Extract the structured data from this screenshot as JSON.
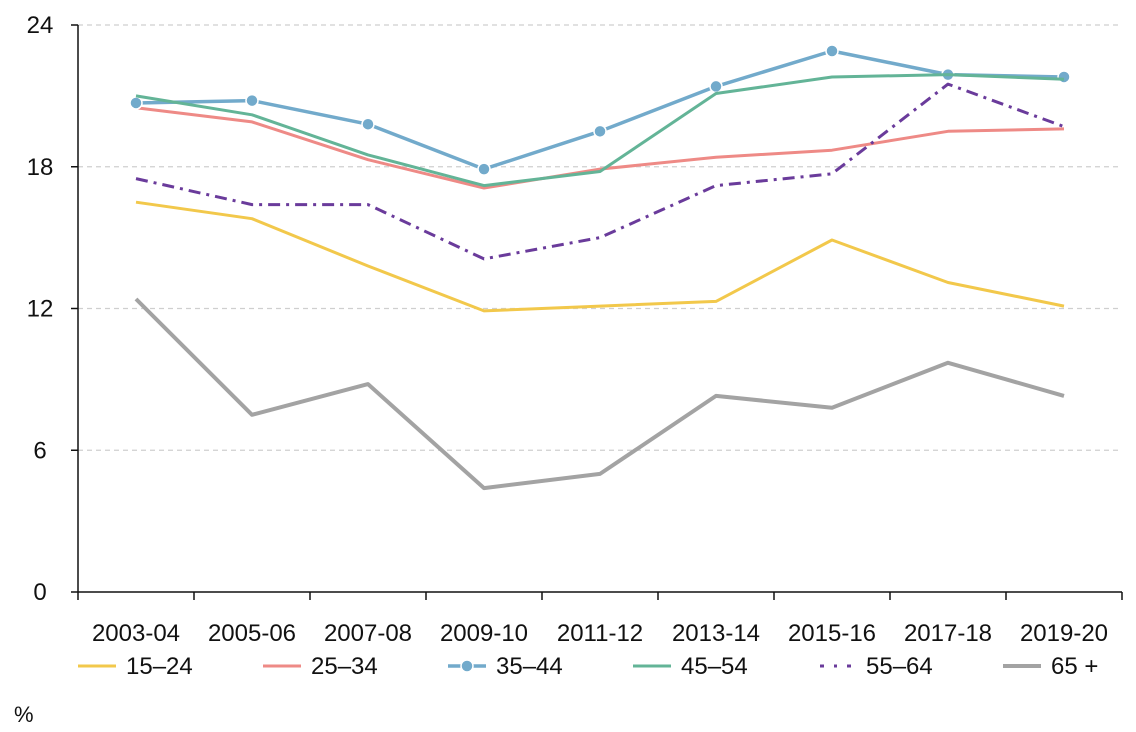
{
  "chart_data": {
    "type": "line",
    "categories": [
      "2003-04",
      "2005-06",
      "2007-08",
      "2009-10",
      "2011-12",
      "2013-14",
      "2015-16",
      "2017-18",
      "2019-20"
    ],
    "ylim": [
      0,
      24
    ],
    "yticks": [
      "0",
      "6",
      "12",
      "18",
      "24"
    ],
    "ylabel": "%",
    "grid": true,
    "legend_position": "bottom",
    "series": [
      {
        "name": "15–24",
        "color": "#F2C84B",
        "style": "solid",
        "values": [
          16.5,
          15.8,
          13.8,
          11.9,
          12.1,
          12.3,
          14.9,
          13.1,
          12.1
        ]
      },
      {
        "name": "25–34",
        "color": "#EE8A86",
        "style": "solid",
        "values": [
          20.5,
          19.9,
          18.3,
          17.1,
          17.9,
          18.4,
          18.7,
          19.5,
          19.6
        ]
      },
      {
        "name": "35–44",
        "color": "#72AACB",
        "style": "dotted-markers",
        "values": [
          20.7,
          20.8,
          19.8,
          17.9,
          19.5,
          21.4,
          22.9,
          21.9,
          21.8
        ]
      },
      {
        "name": "45–54",
        "color": "#63B497",
        "style": "solid",
        "values": [
          21.0,
          20.2,
          18.5,
          17.2,
          17.8,
          21.1,
          21.8,
          21.9,
          21.7
        ]
      },
      {
        "name": "55–64",
        "color": "#6A3B9B",
        "style": "dash-dot",
        "values": [
          17.5,
          16.4,
          16.4,
          14.1,
          15.0,
          17.2,
          17.7,
          21.5,
          19.7
        ]
      },
      {
        "name": "65 +",
        "color": "#A3A3A3",
        "style": "solid-thick",
        "values": [
          12.4,
          7.5,
          8.8,
          4.4,
          5.0,
          8.3,
          7.8,
          9.7,
          8.3
        ]
      }
    ]
  }
}
